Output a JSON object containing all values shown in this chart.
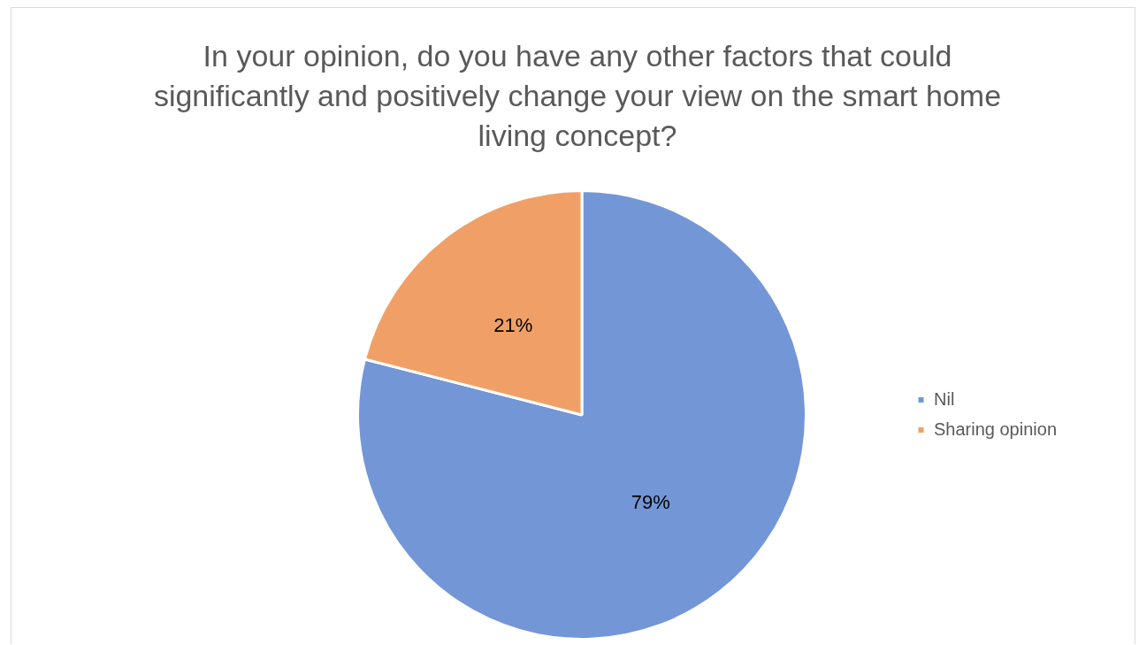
{
  "chart_data": {
    "type": "pie",
    "title": "In your opinion, do you have any other factors that could significantly and positively change your view on the smart home living concept?",
    "categories": [
      "Nil",
      "Sharing opinion"
    ],
    "values": [
      79,
      21
    ],
    "colors": [
      "#7396d6",
      "#f0a067"
    ],
    "value_labels": [
      "79%",
      "21%"
    ],
    "legend": "right"
  }
}
